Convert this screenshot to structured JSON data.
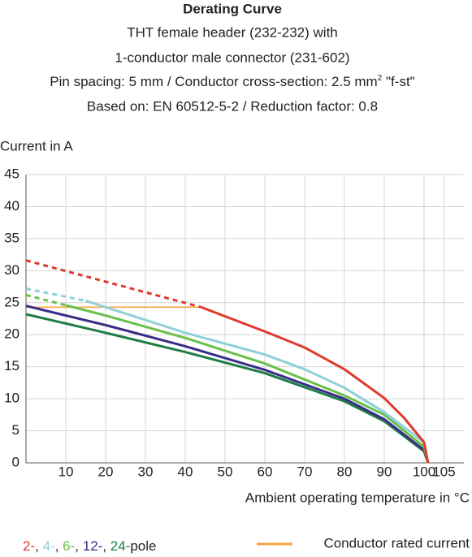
{
  "chart_data": {
    "type": "line",
    "title": "Derating Curve",
    "subtitle": [
      "THT female header (232-232) with",
      "1-conductor male connector (231-602)",
      [
        "Pin spacing: 5 mm / Conductor cross-section: 2.5 mm",
        "2",
        " \"f-st\""
      ],
      "Based on: EN 60512-5-2 / Reduction factor: 0.8"
    ],
    "y_label": "Current in A",
    "x_label": "Ambient operating temperature in °C",
    "xlim": [
      0,
      110
    ],
    "ylim": [
      0,
      45
    ],
    "xticks": [
      10,
      20,
      30,
      40,
      50,
      60,
      70,
      80,
      90,
      100,
      105
    ],
    "yticks": [
      0,
      5,
      10,
      15,
      20,
      25,
      30,
      35,
      40,
      45
    ],
    "grid": true,
    "series": [
      {
        "name": "2-",
        "color": "#e03a2c",
        "segments": [
          {
            "style": "dashed",
            "x": [
              0,
              44
            ],
            "values": [
              31.6,
              24.3
            ]
          },
          {
            "style": "solid",
            "x": [
              44,
              60,
              70,
              80,
              90,
              95,
              100,
              101
            ],
            "values": [
              24.3,
              20.5,
              18,
              14.6,
              10.1,
              7,
              3.2,
              0
            ]
          }
        ]
      },
      {
        "name": "4-",
        "color": "#8fd0d8",
        "segments": [
          {
            "style": "dashed",
            "x": [
              0,
              15
            ],
            "values": [
              27.2,
              25.3
            ]
          },
          {
            "style": "solid",
            "x": [
              15,
              40,
              60,
              70,
              80,
              90,
              100,
              101
            ],
            "values": [
              25.3,
              20.3,
              16.9,
              14.6,
              11.7,
              7.9,
              3.2,
              0
            ]
          }
        ]
      },
      {
        "name": "6-",
        "color": "#6abf4b",
        "segments": [
          {
            "style": "dashed",
            "x": [
              0,
              10
            ],
            "values": [
              26.2,
              24.6
            ]
          },
          {
            "style": "solid",
            "x": [
              10,
              20,
              40,
              60,
              80,
              90,
              100,
              101
            ],
            "values": [
              24.6,
              23,
              19.5,
              15.5,
              10.5,
              7.5,
              2.5,
              0
            ]
          }
        ]
      },
      {
        "name": "12-",
        "color": "#3a2d8a",
        "segments": [
          {
            "style": "solid",
            "x": [
              0,
              20,
              40,
              60,
              80,
              90,
              100,
              101
            ],
            "values": [
              24.5,
              21.5,
              18.2,
              14.5,
              10,
              6.8,
              2,
              0
            ]
          }
        ]
      },
      {
        "name": "24-",
        "color": "#1e7d45",
        "segments": [
          {
            "style": "solid",
            "x": [
              0,
              20,
              40,
              60,
              80,
              90,
              100,
              101
            ],
            "values": [
              23.2,
              20.3,
              17.3,
              14,
              9.6,
              6.5,
              1.8,
              0
            ]
          }
        ]
      }
    ],
    "legend_separator": ", ",
    "legend_suffix": "pole",
    "rated_current": {
      "name": "Conductor rated current",
      "color": "#f5a340",
      "x": [
        0,
        44
      ],
      "values": [
        24.3,
        24.3
      ]
    }
  }
}
